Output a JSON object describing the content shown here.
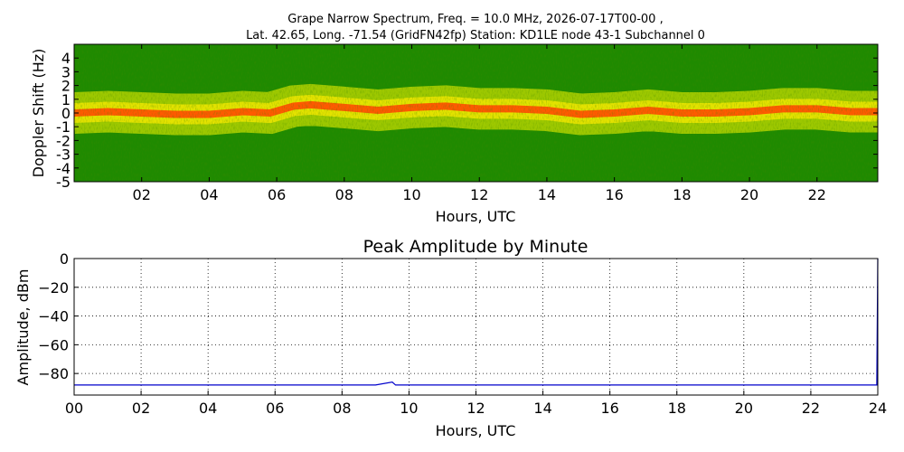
{
  "spectrogram": {
    "title_line1": "Grape Narrow Spectrum, Freq. = 10.0 MHz, 2026-07-17T00-00 ,",
    "title_line2": "Lat.  42.65, Long. -71.54 (GridFN42fp) Station: KD1LE node 43-1 Subchannel 0",
    "xlabel": "Hours, UTC",
    "ylabel": "Doppler Shift (Hz)",
    "colors": {
      "background": "#1f8a00",
      "mid": "#c8dc00",
      "band": "#ff5a00"
    }
  },
  "chart_data": [
    {
      "type": "heatmap",
      "title": "Grape Narrow Spectrum, Freq. = 10.0 MHz, 2026-07-17T00-00 ,\nLat.  42.65, Long. -71.54 (GridFN42fp) Station: KD1LE node 43-1 Subchannel 0",
      "xlabel": "Hours, UTC",
      "ylabel": "Doppler Shift (Hz)",
      "xlim": [
        0,
        23.8
      ],
      "ylim": [
        -5,
        5
      ],
      "x_ticks": [
        2,
        4,
        6,
        8,
        10,
        12,
        14,
        16,
        18,
        20,
        22
      ],
      "x_tick_labels": [
        "02",
        "04",
        "06",
        "08",
        "10",
        "12",
        "14",
        "16",
        "18",
        "20",
        "22"
      ],
      "y_ticks": [
        -5,
        -4,
        -3,
        -2,
        -1,
        0,
        1,
        2,
        3,
        4
      ],
      "y_tick_labels": [
        "-5",
        "-4",
        "-3",
        "-2",
        "-1",
        "0",
        "1",
        "2",
        "3",
        "4"
      ],
      "doppler_peak_track": {
        "hours": [
          0,
          1,
          2,
          3,
          4,
          5,
          5.8,
          6.5,
          7,
          8,
          9,
          10,
          11,
          12,
          13,
          14,
          15,
          16,
          17,
          18,
          19,
          20,
          21,
          22,
          23,
          23.8
        ],
        "shift_hz": [
          0.0,
          0.1,
          0.0,
          -0.1,
          -0.1,
          0.1,
          0.0,
          0.5,
          0.6,
          0.4,
          0.2,
          0.4,
          0.5,
          0.3,
          0.3,
          0.2,
          -0.1,
          0.0,
          0.2,
          0.0,
          0.0,
          0.1,
          0.3,
          0.3,
          0.1,
          0.1
        ]
      }
    },
    {
      "type": "line",
      "title": "Peak Amplitude by Minute",
      "xlabel": "Hours, UTC",
      "ylabel": "Amplitude, dBm",
      "xlim": [
        0,
        24
      ],
      "ylim": [
        -95,
        0
      ],
      "grid": true,
      "x_ticks": [
        0,
        2,
        4,
        6,
        8,
        10,
        12,
        14,
        16,
        18,
        20,
        22,
        24
      ],
      "x_tick_labels": [
        "00",
        "02",
        "04",
        "06",
        "08",
        "10",
        "12",
        "14",
        "16",
        "18",
        "20",
        "22",
        "24"
      ],
      "y_ticks": [
        0,
        -20,
        -40,
        -60,
        -80
      ],
      "y_tick_labels": [
        "0",
        "−20",
        "−40",
        "−60",
        "−80"
      ],
      "series": [
        {
          "color": "#0000cc",
          "x": [
            0,
            1,
            2,
            3,
            3.9,
            5,
            6.3,
            7,
            8,
            9,
            9.5,
            9.6,
            10,
            11,
            12,
            13,
            14,
            15,
            16,
            17,
            18,
            19,
            20,
            21,
            22,
            23,
            23.97,
            24
          ],
          "y": [
            -88,
            -88,
            -88,
            -88,
            -88,
            -88,
            -88,
            -88,
            -88,
            -88,
            -86,
            -88,
            -88,
            -88,
            -88,
            -88,
            -88,
            -88,
            -88,
            -88,
            -88,
            -88,
            -88,
            -88,
            -88,
            -88,
            -88,
            0
          ]
        }
      ]
    }
  ]
}
